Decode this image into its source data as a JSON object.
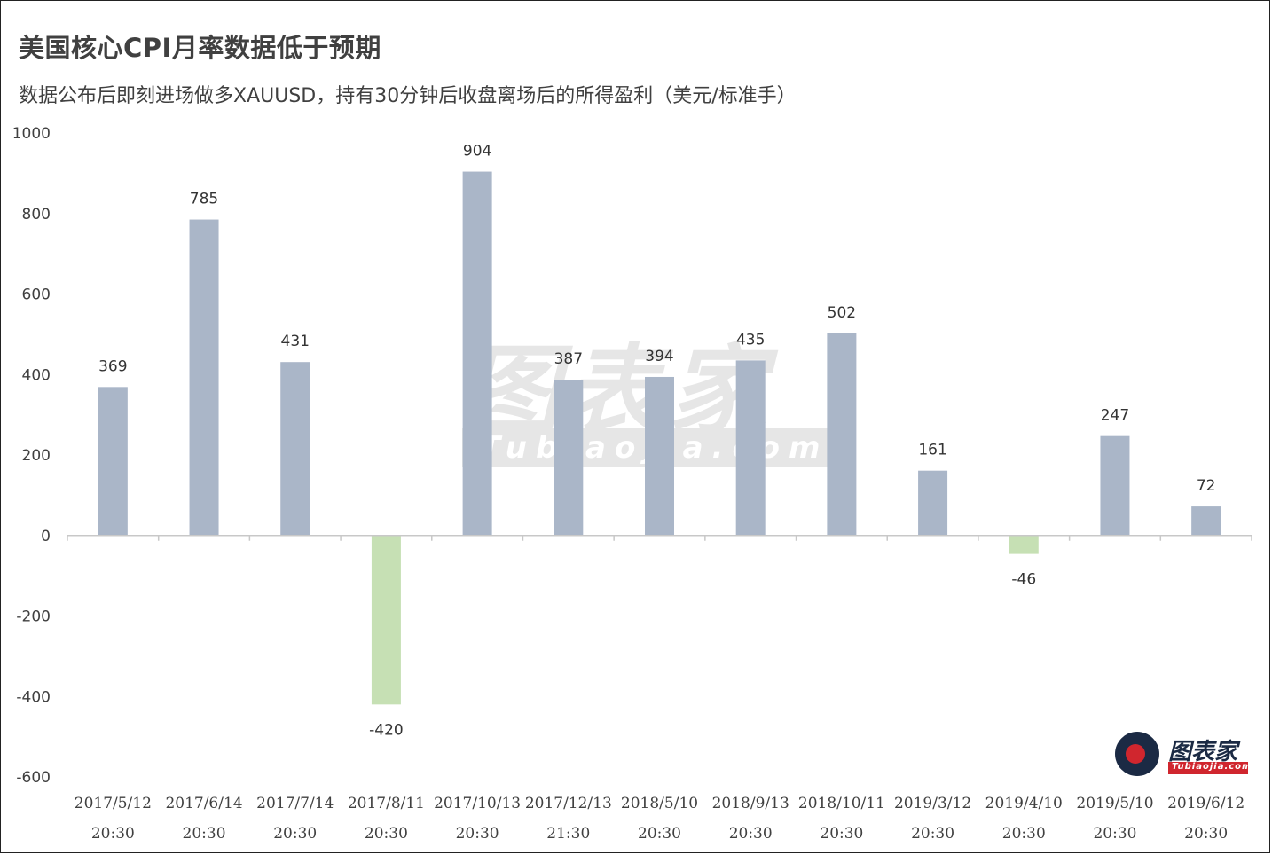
{
  "title": "美国核心CPI月率数据低于预期",
  "subtitle": "数据公布后即刻进场做多XAUUSD，持有30分钟后收盘离场后的所得盈利（美元/标准手）",
  "watermark": {
    "main": "图表家",
    "sub": "Tubiaojia.com"
  },
  "logo": {
    "main": "图表家",
    "sub": "Tubiaojia.com"
  },
  "colors": {
    "positive": "#aab6c8",
    "negative": "#c6e0b4",
    "axis": "#c8c8c8",
    "text": "#404040"
  },
  "chart_data": {
    "type": "bar",
    "categories": [
      {
        "date": "2017/5/12",
        "time": "20:30"
      },
      {
        "date": "2017/6/14",
        "time": "20:30"
      },
      {
        "date": "2017/7/14",
        "time": "20:30"
      },
      {
        "date": "2017/8/11",
        "time": "20:30"
      },
      {
        "date": "2017/10/13",
        "time": "20:30"
      },
      {
        "date": "2017/12/13",
        "time": "21:30"
      },
      {
        "date": "2018/5/10",
        "time": "20:30"
      },
      {
        "date": "2018/9/13",
        "time": "20:30"
      },
      {
        "date": "2018/10/11",
        "time": "20:30"
      },
      {
        "date": "2019/3/12",
        "time": "20:30"
      },
      {
        "date": "2019/4/10",
        "time": "20:30"
      },
      {
        "date": "2019/5/10",
        "time": "20:30"
      },
      {
        "date": "2019/6/12",
        "time": "20:30"
      }
    ],
    "values": [
      369,
      785,
      431,
      -420,
      904,
      387,
      394,
      435,
      502,
      161,
      -46,
      247,
      72
    ],
    "ylim": [
      -600,
      1000
    ],
    "yticks": [
      1000,
      800,
      600,
      400,
      200,
      0,
      -200,
      -400,
      -600
    ],
    "data_labels": true,
    "grid": false,
    "legend": "none"
  }
}
